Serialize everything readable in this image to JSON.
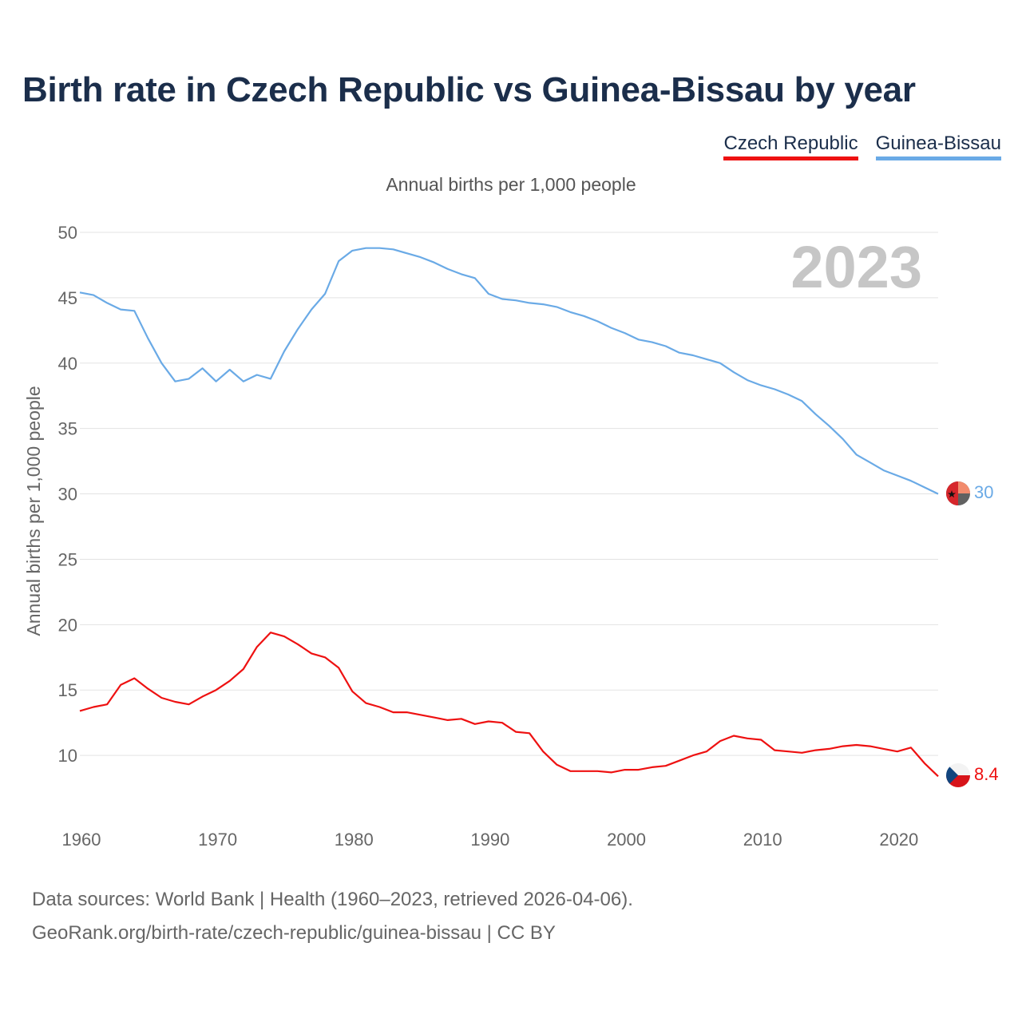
{
  "title": "Birth rate in Czech Republic vs Guinea-Bissau by year",
  "subtitle": "Annual births per 1,000 people",
  "legend": [
    {
      "label": "Czech Republic",
      "color": "#ee1111"
    },
    {
      "label": "Guinea-Bissau",
      "color": "#6aaae6"
    }
  ],
  "year_display": "2023",
  "footer": {
    "line1": "Data sources: World Bank | Health (1960–2023, retrieved 2026-04-06).",
    "line2": "GeoRank.org/birth-rate/czech-republic/guinea-bissau | CC BY"
  },
  "chart_data": {
    "type": "line",
    "title": "Birth rate in Czech Republic vs Guinea-Bissau by year",
    "xlabel": "",
    "ylabel": "Annual births per 1,000 people",
    "xlim": [
      1960,
      2023
    ],
    "ylim": [
      5,
      50
    ],
    "x_ticks": [
      1960,
      1970,
      1980,
      1990,
      2000,
      2010,
      2020
    ],
    "y_ticks": [
      10,
      15,
      20,
      25,
      30,
      35,
      40,
      45,
      50
    ],
    "grid": true,
    "legend_position": "top-right",
    "x_start": 1960,
    "series": [
      {
        "name": "Czech Republic",
        "color": "#ee1111",
        "end_label": "8.4",
        "flag": "czech-flag-icon",
        "values": [
          13.4,
          13.7,
          13.9,
          15.4,
          15.9,
          15.1,
          14.4,
          14.1,
          13.9,
          14.5,
          15.0,
          15.7,
          16.6,
          18.3,
          19.4,
          19.1,
          18.5,
          17.8,
          17.5,
          16.7,
          14.9,
          14.0,
          13.7,
          13.3,
          13.3,
          13.1,
          12.9,
          12.7,
          12.8,
          12.4,
          12.6,
          12.5,
          11.8,
          11.7,
          10.3,
          9.3,
          8.8,
          8.8,
          8.8,
          8.7,
          8.9,
          8.9,
          9.1,
          9.2,
          9.6,
          10.0,
          10.3,
          11.1,
          11.5,
          11.3,
          11.2,
          10.4,
          10.3,
          10.2,
          10.4,
          10.5,
          10.7,
          10.8,
          10.7,
          10.5,
          10.3,
          10.6,
          9.4,
          8.4
        ]
      },
      {
        "name": "Guinea-Bissau",
        "color": "#6aaae6",
        "end_label": "30",
        "flag": "guinea-bissau-flag-icon",
        "values": [
          45.4,
          45.2,
          44.6,
          44.1,
          44.0,
          41.9,
          40.0,
          38.6,
          38.8,
          39.6,
          38.6,
          39.5,
          38.6,
          39.1,
          38.8,
          40.9,
          42.6,
          44.1,
          45.3,
          47.8,
          48.6,
          48.8,
          48.8,
          48.7,
          48.4,
          48.1,
          47.7,
          47.2,
          46.8,
          46.5,
          45.3,
          44.9,
          44.8,
          44.6,
          44.5,
          44.3,
          43.9,
          43.6,
          43.2,
          42.7,
          42.3,
          41.8,
          41.6,
          41.3,
          40.8,
          40.6,
          40.3,
          40.0,
          39.3,
          38.7,
          38.3,
          38.0,
          37.6,
          37.1,
          36.1,
          35.2,
          34.2,
          33.0,
          32.4,
          31.8,
          31.4,
          31.0,
          30.5,
          30.0
        ]
      }
    ]
  }
}
